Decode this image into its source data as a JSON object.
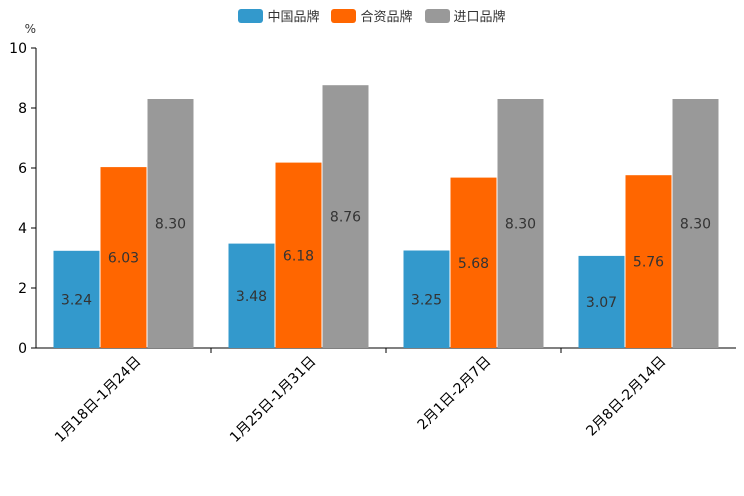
{
  "chart_data": {
    "type": "bar",
    "title": "",
    "ylabel": "%",
    "xlabel": "",
    "ylim": [
      0,
      10
    ],
    "yticks": [
      0,
      2,
      4,
      6,
      8,
      10
    ],
    "grid": false,
    "legend_position": "top-center",
    "categories": [
      "1月18日-1月24日",
      "1月25日-1月31日",
      "2月1日-2月7日",
      "2月8日-2月14日"
    ],
    "series": [
      {
        "name": "中国品牌",
        "color": "#3399cc",
        "values": [
          3.24,
          3.48,
          3.25,
          3.07
        ],
        "labels": [
          "3.24",
          "3.48",
          "3.25",
          "3.07"
        ]
      },
      {
        "name": "合资品牌",
        "color": "#ff6600",
        "values": [
          6.03,
          6.18,
          5.68,
          5.76
        ],
        "labels": [
          "6.03",
          "6.18",
          "5.68",
          "5.76"
        ]
      },
      {
        "name": "进口品牌",
        "color": "#999999",
        "values": [
          8.3,
          8.76,
          8.3,
          8.3
        ],
        "labels": [
          "8.30",
          "8.76",
          "8.30",
          "8.30"
        ]
      }
    ]
  }
}
